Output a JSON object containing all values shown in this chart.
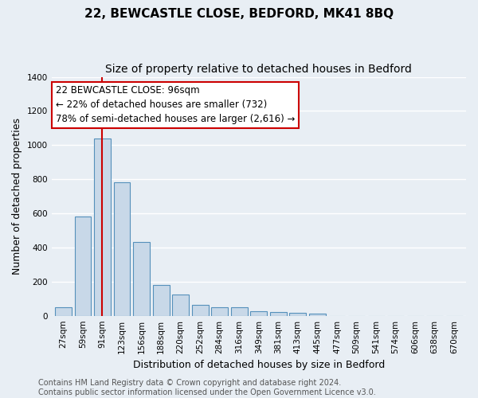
{
  "title": "22, BEWCASTLE CLOSE, BEDFORD, MK41 8BQ",
  "subtitle": "Size of property relative to detached houses in Bedford",
  "xlabel": "Distribution of detached houses by size in Bedford",
  "ylabel": "Number of detached properties",
  "bar_color": "#c8d8e8",
  "bar_edge_color": "#5590bb",
  "bg_color": "#e8eef4",
  "grid_color": "#ffffff",
  "bins": [
    "27sqm",
    "59sqm",
    "91sqm",
    "123sqm",
    "156sqm",
    "188sqm",
    "220sqm",
    "252sqm",
    "284sqm",
    "316sqm",
    "349sqm",
    "381sqm",
    "413sqm",
    "445sqm",
    "477sqm",
    "509sqm",
    "541sqm",
    "574sqm",
    "606sqm",
    "638sqm",
    "670sqm"
  ],
  "values": [
    50,
    580,
    1040,
    780,
    430,
    180,
    125,
    65,
    50,
    50,
    28,
    22,
    15,
    12,
    0,
    0,
    0,
    0,
    0,
    0,
    0
  ],
  "property_bin_index": 2,
  "property_label": "22 BEWCASTLE CLOSE: 96sqm",
  "annotation_line1": "← 22% of detached houses are smaller (732)",
  "annotation_line2": "78% of semi-detached houses are larger (2,616) →",
  "red_line_color": "#cc0000",
  "annotation_box_color": "#ffffff",
  "annotation_box_edge": "#cc0000",
  "ylim": [
    0,
    1400
  ],
  "yticks": [
    0,
    200,
    400,
    600,
    800,
    1000,
    1200,
    1400
  ],
  "footer1": "Contains HM Land Registry data © Crown copyright and database right 2024.",
  "footer2": "Contains public sector information licensed under the Open Government Licence v3.0.",
  "title_fontsize": 11,
  "subtitle_fontsize": 10,
  "axis_label_fontsize": 9,
  "tick_fontsize": 7.5,
  "annotation_fontsize": 8.5,
  "footer_fontsize": 7
}
